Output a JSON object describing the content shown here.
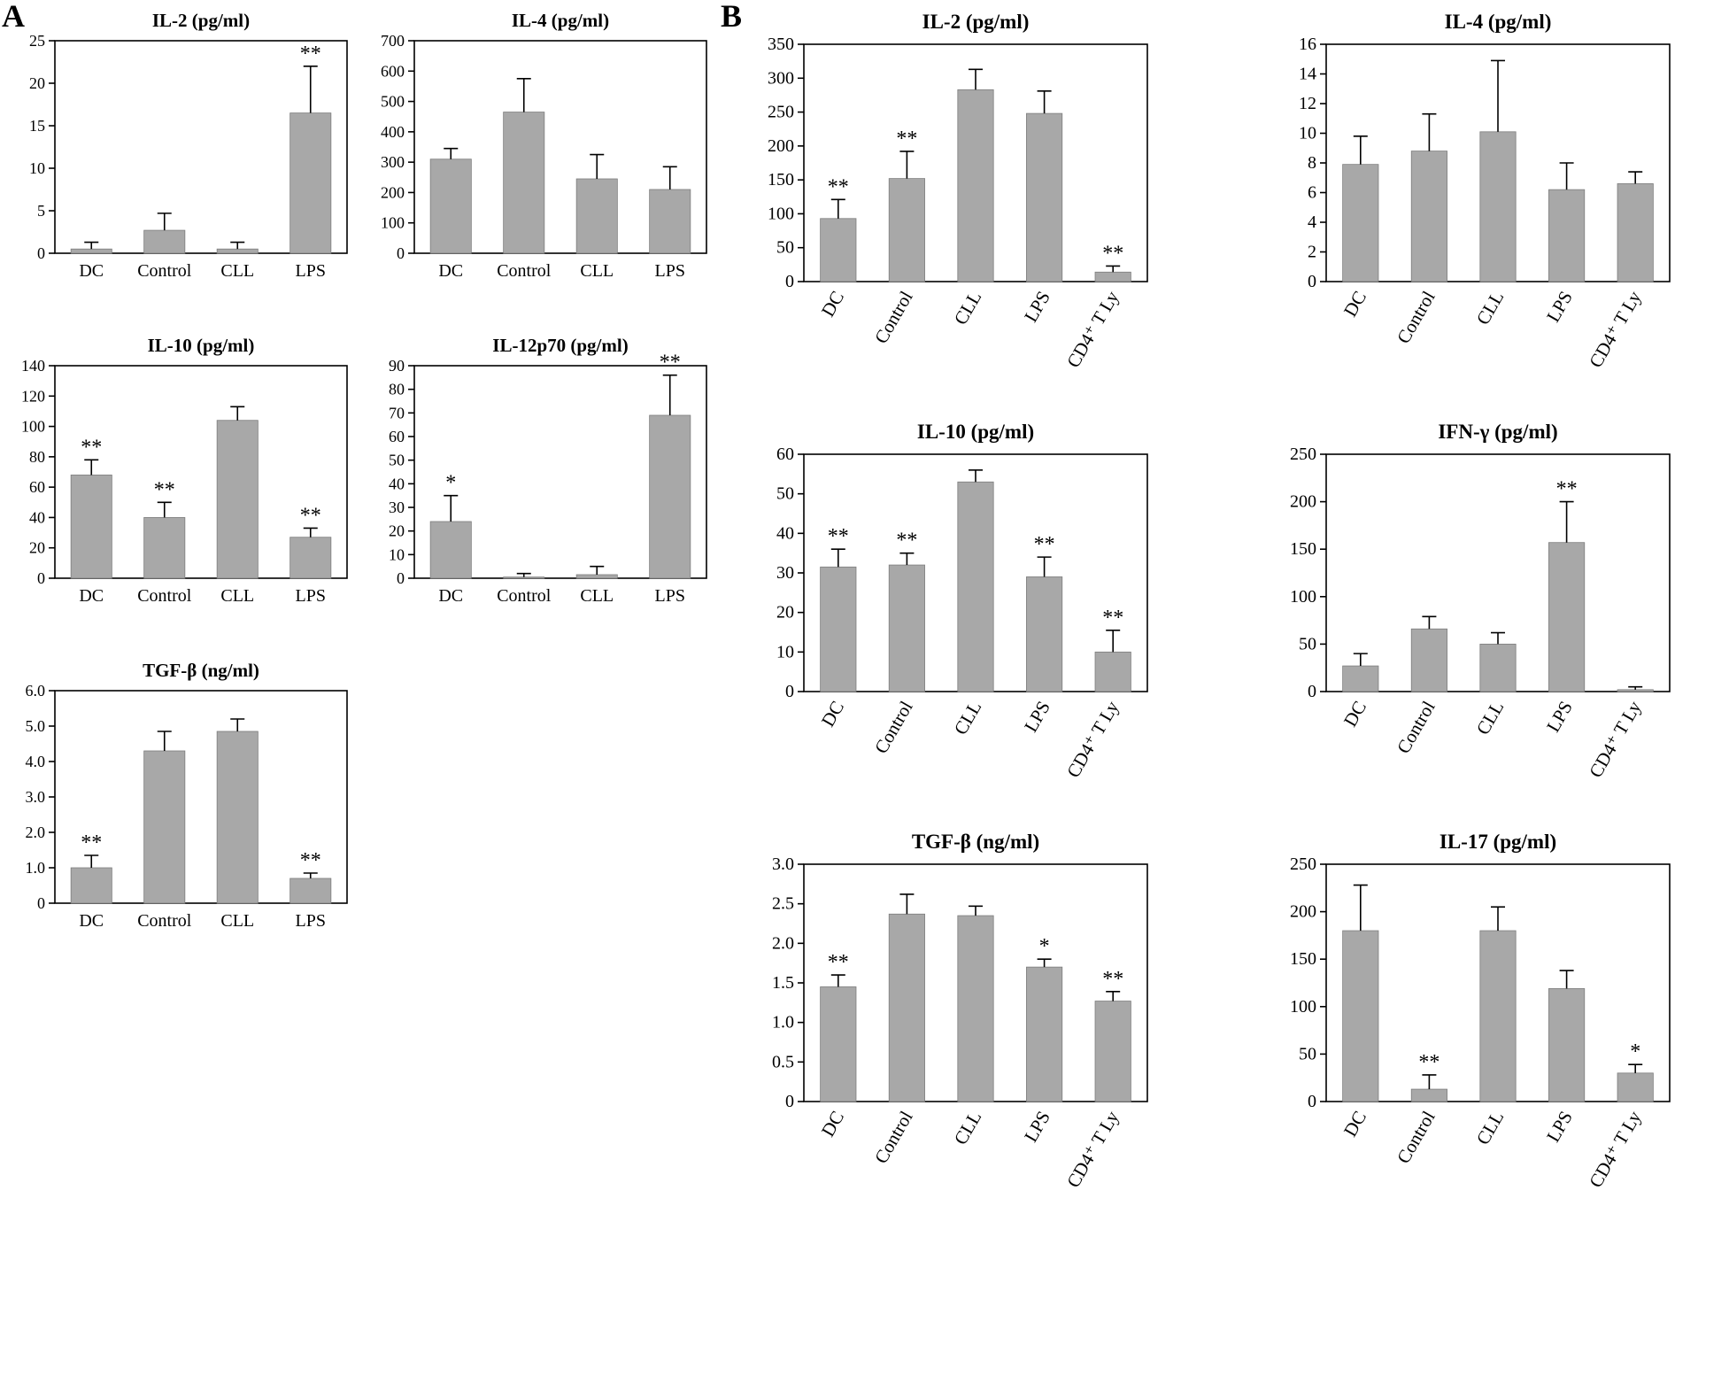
{
  "figure": {
    "panels": [
      {
        "label": "A"
      },
      {
        "label": "B"
      }
    ]
  },
  "chart_data": [
    {
      "panel": "A",
      "type": "bar",
      "title": "IL-2 (pg/ml)",
      "categories": [
        "DC",
        "Control",
        "CLL",
        "LPS"
      ],
      "values": [
        0.5,
        2.7,
        0.5,
        16.5
      ],
      "errors": [
        0.8,
        2.0,
        0.8,
        5.5
      ],
      "sig": [
        "",
        "",
        "",
        "**"
      ],
      "ylim": [
        0,
        25
      ],
      "yticks": [
        "0",
        "5",
        "10",
        "15",
        "20",
        "25"
      ],
      "rotated_x_labels": false
    },
    {
      "panel": "A",
      "type": "bar",
      "title": "IL-4 (pg/ml)",
      "categories": [
        "DC",
        "Control",
        "CLL",
        "LPS"
      ],
      "values": [
        310,
        465,
        245,
        210
      ],
      "errors": [
        35,
        110,
        80,
        75
      ],
      "sig": [
        "",
        "",
        "",
        ""
      ],
      "ylim": [
        0,
        700
      ],
      "yticks": [
        "0",
        "100",
        "200",
        "300",
        "400",
        "500",
        "600",
        "700"
      ],
      "rotated_x_labels": false
    },
    {
      "panel": "A",
      "type": "bar",
      "title": "IL-10 (pg/ml)",
      "categories": [
        "DC",
        "Control",
        "CLL",
        "LPS"
      ],
      "values": [
        68,
        40,
        104,
        27
      ],
      "errors": [
        10,
        10,
        9,
        6
      ],
      "sig": [
        "**",
        "**",
        "",
        "**"
      ],
      "ylim": [
        0,
        140
      ],
      "yticks": [
        "0",
        "20",
        "40",
        "60",
        "80",
        "100",
        "120",
        "140"
      ],
      "rotated_x_labels": false
    },
    {
      "panel": "A",
      "type": "bar",
      "title": "IL-12p70 (pg/ml)",
      "categories": [
        "DC",
        "Control",
        "CLL",
        "LPS"
      ],
      "values": [
        24,
        0.5,
        1.5,
        69
      ],
      "errors": [
        11,
        1.5,
        3.5,
        17
      ],
      "sig": [
        "*",
        "",
        "",
        "**"
      ],
      "ylim": [
        0,
        90
      ],
      "yticks": [
        "0",
        "10",
        "20",
        "30",
        "40",
        "50",
        "60",
        "70",
        "80",
        "90"
      ],
      "rotated_x_labels": false
    },
    {
      "panel": "A",
      "type": "bar",
      "title": "TGF-β (ng/ml)",
      "categories": [
        "DC",
        "Control",
        "CLL",
        "LPS"
      ],
      "values": [
        1.0,
        4.3,
        4.85,
        0.7
      ],
      "errors": [
        0.35,
        0.55,
        0.35,
        0.15
      ],
      "sig": [
        "**",
        "",
        "",
        "**"
      ],
      "ylim": [
        0,
        6
      ],
      "yticks": [
        "0",
        "1.0",
        "2.0",
        "3.0",
        "4.0",
        "5.0",
        "6.0"
      ],
      "rotated_x_labels": false
    },
    {
      "panel": "B",
      "type": "bar",
      "title": "IL-2 (pg/ml)",
      "categories": [
        "DC",
        "Control",
        "CLL",
        "LPS",
        "CD4⁺ T Ly"
      ],
      "values": [
        93,
        152,
        283,
        248,
        14
      ],
      "errors": [
        28,
        40,
        30,
        33,
        9
      ],
      "sig": [
        "**",
        "**",
        "",
        "",
        "**"
      ],
      "ylim": [
        0,
        350
      ],
      "yticks": [
        "0",
        "50",
        "100",
        "150",
        "200",
        "250",
        "300",
        "350"
      ],
      "rotated_x_labels": true
    },
    {
      "panel": "B",
      "type": "bar",
      "title": "IL-4 (pg/ml)",
      "categories": [
        "DC",
        "Control",
        "CLL",
        "LPS",
        "CD4⁺ T Ly"
      ],
      "values": [
        7.9,
        8.8,
        10.1,
        6.2,
        6.6
      ],
      "errors": [
        1.9,
        2.5,
        4.8,
        1.8,
        0.8
      ],
      "sig": [
        "",
        "",
        "",
        "",
        ""
      ],
      "ylim": [
        0,
        16
      ],
      "yticks": [
        "0",
        "2",
        "4",
        "6",
        "8",
        "10",
        "12",
        "14",
        "16"
      ],
      "rotated_x_labels": true
    },
    {
      "panel": "B",
      "type": "bar",
      "title": "IL-10 (pg/ml)",
      "categories": [
        "DC",
        "Control",
        "CLL",
        "LPS",
        "CD4⁺ T Ly"
      ],
      "values": [
        31.5,
        32,
        53,
        29,
        10
      ],
      "errors": [
        4.5,
        3,
        3,
        5,
        5.5
      ],
      "sig": [
        "**",
        "**",
        "",
        "**",
        "**"
      ],
      "ylim": [
        0,
        60
      ],
      "yticks": [
        "0",
        "10",
        "20",
        "30",
        "40",
        "50",
        "60"
      ],
      "rotated_x_labels": true
    },
    {
      "panel": "B",
      "type": "bar",
      "title": "IFN-γ (pg/ml)",
      "categories": [
        "DC",
        "Control",
        "CLL",
        "LPS",
        "CD4⁺ T Ly"
      ],
      "values": [
        27,
        66,
        50,
        157,
        2
      ],
      "errors": [
        13,
        13,
        12,
        43,
        3
      ],
      "sig": [
        "",
        "",
        "",
        "**",
        ""
      ],
      "ylim": [
        0,
        250
      ],
      "yticks": [
        "0",
        "50",
        "100",
        "150",
        "200",
        "250"
      ],
      "rotated_x_labels": true
    },
    {
      "panel": "B",
      "type": "bar",
      "title": "TGF-β (ng/ml)",
      "categories": [
        "DC",
        "Control",
        "CLL",
        "LPS",
        "CD4⁺ T Ly"
      ],
      "values": [
        1.45,
        2.37,
        2.35,
        1.7,
        1.27
      ],
      "errors": [
        0.15,
        0.25,
        0.12,
        0.1,
        0.12
      ],
      "sig": [
        "**",
        "",
        "",
        "*",
        "**"
      ],
      "ylim": [
        0,
        3
      ],
      "yticks": [
        "0",
        "0.5",
        "1.0",
        "1.5",
        "2.0",
        "2.5",
        "3.0"
      ],
      "rotated_x_labels": true
    },
    {
      "panel": "B",
      "type": "bar",
      "title": "IL-17 (pg/ml)",
      "categories": [
        "DC",
        "Control",
        "CLL",
        "LPS",
        "CD4⁺ T Ly"
      ],
      "values": [
        180,
        13,
        180,
        119,
        30
      ],
      "errors": [
        48,
        15,
        25,
        19,
        9
      ],
      "sig": [
        "",
        "**",
        "",
        "",
        "*"
      ],
      "ylim": [
        0,
        250
      ],
      "yticks": [
        "0",
        "50",
        "100",
        "150",
        "200",
        "250"
      ],
      "rotated_x_labels": true
    }
  ]
}
